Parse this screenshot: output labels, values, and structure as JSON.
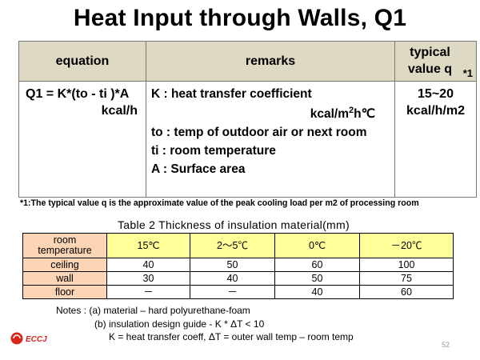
{
  "title": "Heat Input through Walls, Q1",
  "table1": {
    "headers": {
      "equation": "equation",
      "remarks": "remarks",
      "typical_line1": "typical",
      "typical_line2": "value q",
      "typical_ref": "*1"
    },
    "equation_line1": "Q1 = K*(to - ti )*A",
    "equation_line2": "kcal/h",
    "remarks": {
      "k_label": "K : heat transfer coefficient",
      "k_unit_a": "kcal/m",
      "k_unit_sup": "2",
      "k_unit_b": "h℃",
      "to": "to : temp of outdoor air or next room",
      "ti": "ti : room temperature",
      "a": "A : Surface area"
    },
    "typical_value_line1": "15~20",
    "typical_value_line2": "kcal/h/m2"
  },
  "footnote": "*1:The typical value q is the approximate value of the peak cooling load per m2 of processing room",
  "table2": {
    "title": "Table 2  Thickness of insulation material(mm)",
    "corner_line1": "room",
    "corner_line2": "temperature",
    "columns": [
      "15℃",
      "2～5℃",
      "0℃",
      "－20℃"
    ],
    "rows": [
      {
        "label": "ceiling",
        "values": [
          "40",
          "50",
          "60",
          "100"
        ]
      },
      {
        "label": "wall",
        "values": [
          "30",
          "40",
          "50",
          "75"
        ]
      },
      {
        "label": "floor",
        "values": [
          "－",
          "－",
          "40",
          "60"
        ]
      }
    ]
  },
  "notes": {
    "line1": "Notes : (a) material – hard polyurethane-foam",
    "line2": "(b) insulation design guide - K * ΔT < 10",
    "line3": "K = heat transfer coeff, ΔT = outer wall temp – room temp"
  },
  "logo": {
    "text": "ECCJ",
    "color": "#d9261c"
  },
  "page_number": "52"
}
